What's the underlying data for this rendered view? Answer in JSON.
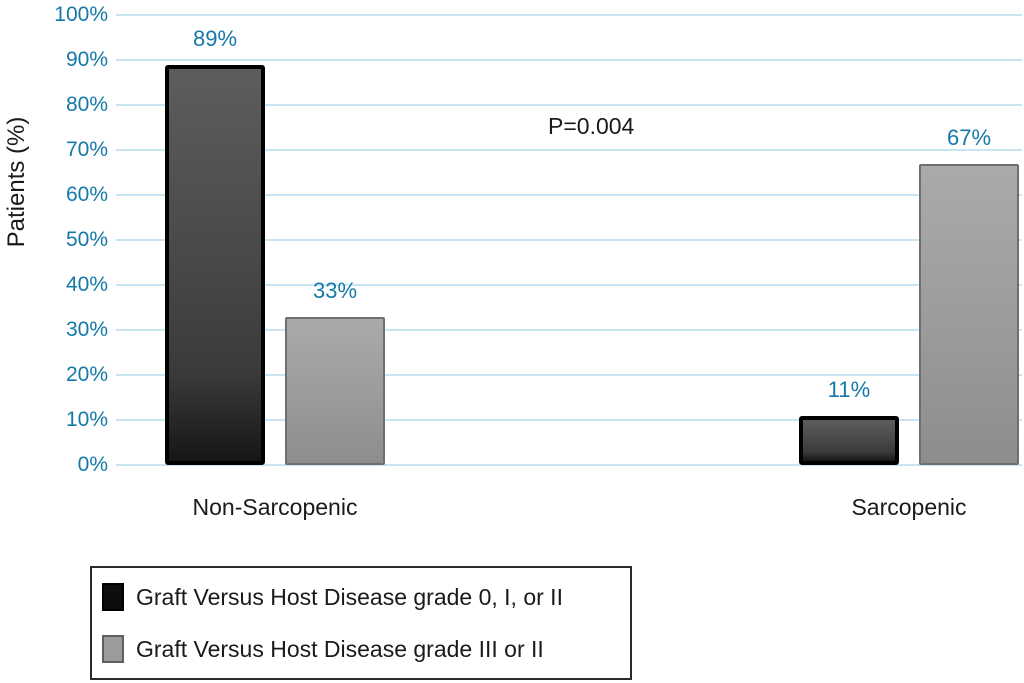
{
  "chart_data": {
    "type": "bar",
    "title": "",
    "xlabel": "",
    "ylabel": "Patients (%)",
    "categories": [
      "Non-Sarcopenic",
      "Sarcopenic"
    ],
    "series": [
      {
        "name": "Graft Versus Host Disease grade 0, I, or II",
        "values": [
          89,
          11
        ],
        "value_labels": [
          "89%",
          "11%"
        ],
        "color": "#3f3f3f"
      },
      {
        "name": "Graft Versus Host Disease grade III or II",
        "values": [
          33,
          67
        ],
        "value_labels": [
          "33%",
          "67%"
        ],
        "color": "#9b9b9b"
      }
    ],
    "ylim": [
      0,
      100
    ],
    "yticks": [
      {
        "value": 0,
        "label": "0%"
      },
      {
        "value": 10,
        "label": "10%"
      },
      {
        "value": 20,
        "label": "20%"
      },
      {
        "value": 30,
        "label": "30%"
      },
      {
        "value": 40,
        "label": "40%"
      },
      {
        "value": 50,
        "label": "50%"
      },
      {
        "value": 60,
        "label": "60%"
      },
      {
        "value": 70,
        "label": "70%"
      },
      {
        "value": 80,
        "label": "80%"
      },
      {
        "value": 90,
        "label": "90%"
      },
      {
        "value": 100,
        "label": "100%"
      }
    ],
    "annotation": "P=0.004",
    "grid": true,
    "legend_position": "bottom-left"
  },
  "colors": {
    "axis_tick_text": "#1479a8",
    "value_label_text": "#1479a8",
    "gridline": "#c9e5f3",
    "bar_dark_fill": "#3f3f3f",
    "bar_dark_border": "#000000",
    "bar_gray_fill": "#9b9b9b",
    "bar_gray_border": "#6f6f6f",
    "category_text": "#1a1a1a",
    "annotation_text": "#1a1a1a",
    "background": "#ffffff"
  }
}
